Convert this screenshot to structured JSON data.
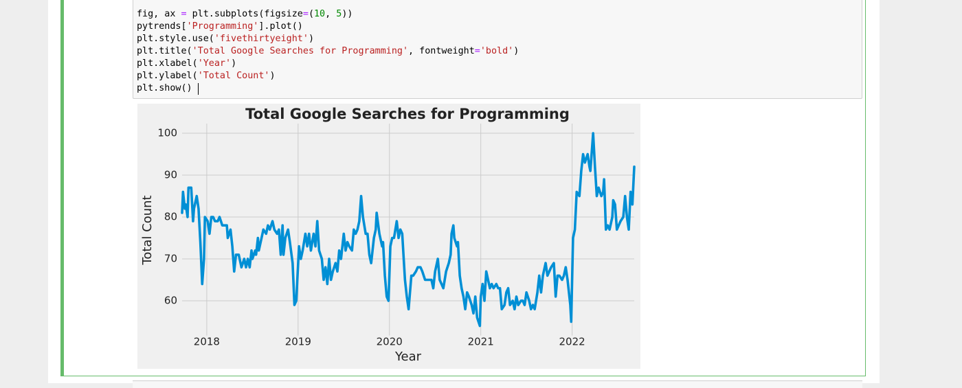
{
  "code_cell": {
    "lines": [
      "fig, ax = plt.subplots(figsize=(10, 5))",
      "pytrends['Programming'].plot()",
      "plt.style.use('fivethirtyeight')",
      "plt.title('Total Google Searches for Programming', fontweight='bold')",
      "plt.xlabel('Year')",
      "plt.ylabel('Total Count')",
      "plt.show()"
    ]
  },
  "chart_data": {
    "type": "line",
    "title": "Total Google Searches for Programming",
    "x_label": "Year",
    "y_label": "Total Count",
    "color": "#008fd5",
    "grid": true,
    "xlim": [
      2017.73,
      2022.68
    ],
    "xticks": [
      2018,
      2019,
      2020,
      2021,
      2022
    ],
    "ylim": [
      51.7,
      102.3
    ],
    "yticks": [
      60,
      70,
      80,
      90,
      100
    ],
    "x": [
      2017.73,
      2017.74,
      2017.76,
      2017.77,
      2017.79,
      2017.8,
      2017.83,
      2017.85,
      2017.86,
      2017.89,
      2017.91,
      2017.93,
      2017.95,
      2017.97,
      2017.98,
      2018.01,
      2018.03,
      2018.05,
      2018.07,
      2018.09,
      2018.12,
      2018.14,
      2018.17,
      2018.22,
      2018.23,
      2018.26,
      2018.28,
      2018.3,
      2018.32,
      2018.35,
      2018.38,
      2018.41,
      2018.43,
      2018.45,
      2018.47,
      2018.49,
      2018.5,
      2018.53,
      2018.54,
      2018.56,
      2018.57,
      2018.59,
      2018.62,
      2018.65,
      2018.67,
      2018.69,
      2018.72,
      2018.74,
      2018.77,
      2018.79,
      2018.81,
      2018.83,
      2018.84,
      2018.86,
      2018.89,
      2018.91,
      2018.94,
      2018.96,
      2018.98,
      2019.01,
      2019.03,
      2019.05,
      2019.08,
      2019.1,
      2019.12,
      2019.14,
      2019.17,
      2019.19,
      2019.21,
      2019.23,
      2019.26,
      2019.28,
      2019.3,
      2019.32,
      2019.34,
      2019.36,
      2019.38,
      2019.41,
      2019.43,
      2019.45,
      2019.47,
      2019.5,
      2019.52,
      2019.54,
      2019.56,
      2019.59,
      2019.61,
      2019.63,
      2019.65,
      2019.67,
      2019.69,
      2019.71,
      2019.74,
      2019.76,
      2019.78,
      2019.8,
      2019.83,
      2019.85,
      2019.86,
      2019.89,
      2019.9,
      2019.92,
      2019.93,
      2019.95,
      2019.97,
      2019.99,
      2020.01,
      2020.03,
      2020.05,
      2020.08,
      2020.1,
      2020.12,
      2020.14,
      2020.17,
      2020.19,
      2020.21,
      2020.24,
      2020.26,
      2020.29,
      2020.31,
      2020.34,
      2020.36,
      2020.39,
      2020.42,
      2020.46,
      2020.48,
      2020.5,
      2020.53,
      2020.55,
      2020.57,
      2020.59,
      2020.62,
      2020.65,
      2020.67,
      2020.68,
      2020.7,
      2020.71,
      2020.74,
      2020.75,
      2020.77,
      2020.79,
      2020.81,
      2020.83,
      2020.85,
      2020.87,
      2020.9,
      2020.92,
      2020.94,
      2020.96,
      2020.99,
      2021.0,
      2021.02,
      2021.04,
      2021.06,
      2021.08,
      2021.1,
      2021.12,
      2021.14,
      2021.17,
      2021.19,
      2021.21,
      2021.23,
      2021.26,
      2021.28,
      2021.3,
      2021.32,
      2021.35,
      2021.37,
      2021.39,
      2021.41,
      2021.44,
      2021.46,
      2021.48,
      2021.5,
      2021.53,
      2021.55,
      2021.57,
      2021.59,
      2021.62,
      2021.64,
      2021.66,
      2021.68,
      2021.71,
      2021.73,
      2021.75,
      2021.77,
      2021.8,
      2021.82,
      2021.84,
      2021.86,
      2021.89,
      2021.91,
      2021.93,
      2021.95,
      2021.98,
      2021.99,
      2022.01,
      2022.03,
      2022.05,
      2022.08,
      2022.1,
      2022.12,
      2022.14,
      2022.17,
      2022.19,
      2022.2,
      2022.23,
      2022.25,
      2022.27,
      2022.29,
      2022.32,
      2022.34,
      2022.35,
      2022.37,
      2022.39,
      2022.41,
      2022.44,
      2022.45,
      2022.47,
      2022.49,
      2022.51,
      2022.53,
      2022.56,
      2022.58,
      2022.6,
      2022.62,
      2022.64,
      2022.66,
      2022.68
    ],
    "values": [
      81,
      86,
      82,
      83,
      80,
      87,
      87,
      79,
      82,
      85,
      82,
      74,
      64,
      70,
      80,
      79,
      76,
      80,
      80,
      79,
      79,
      80,
      78,
      78,
      75,
      77,
      73,
      67,
      71,
      71,
      68,
      70,
      68,
      70,
      68,
      72,
      70,
      72,
      71,
      75,
      72,
      74,
      77,
      76,
      78,
      77,
      79,
      77,
      76,
      77,
      71,
      78,
      71,
      75,
      77,
      74,
      69,
      59,
      60,
      73,
      70,
      72,
      76,
      73,
      76,
      72,
      76,
      73,
      79,
      72,
      70,
      65,
      68,
      64,
      70,
      65,
      67,
      69,
      67,
      72,
      70,
      76,
      72,
      74,
      73,
      72,
      77,
      76,
      77,
      79,
      85,
      80,
      76,
      76,
      71,
      69,
      75,
      77,
      81,
      76,
      75,
      73,
      74,
      66,
      61,
      60,
      73,
      75,
      75,
      79,
      75,
      77,
      76,
      65,
      61,
      58,
      66,
      66,
      67,
      68,
      68,
      67,
      65,
      65,
      65,
      63,
      67,
      70,
      65,
      64,
      63,
      67,
      69,
      71,
      76,
      78,
      75,
      73,
      74,
      66,
      63,
      61,
      58,
      62,
      61,
      59,
      57,
      61,
      56,
      54,
      61,
      64,
      60,
      67,
      65,
      63,
      64,
      63,
      64,
      63,
      63,
      58,
      59,
      62,
      63,
      59,
      60,
      58,
      61,
      59,
      60,
      60,
      59,
      62,
      60,
      58,
      59,
      58,
      62,
      66,
      62,
      66,
      69,
      66,
      67,
      68,
      69,
      61,
      66,
      66,
      65,
      66,
      68,
      65,
      59,
      55,
      75,
      77,
      86,
      85,
      91,
      95,
      93,
      95,
      92,
      91,
      100,
      92,
      85,
      87,
      85,
      86,
      89,
      77,
      78,
      77,
      80,
      84,
      83,
      77,
      78,
      79,
      80,
      85,
      80,
      77,
      86,
      83,
      92
    ]
  }
}
